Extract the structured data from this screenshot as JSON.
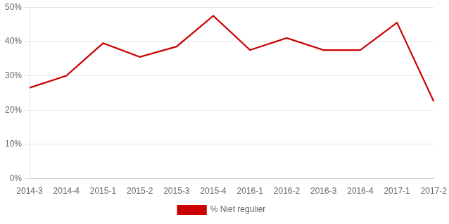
{
  "chart_data": {
    "type": "line",
    "categories": [
      "2014-3",
      "2014-4",
      "2015-1",
      "2015-2",
      "2015-3",
      "2015-4",
      "2016-1",
      "2016-2",
      "2016-3",
      "2016-4",
      "2017-1",
      "2017-2"
    ],
    "series": [
      {
        "name": "% Niet regulier",
        "color": "#cc0000",
        "values": [
          0.265,
          0.3,
          0.395,
          0.355,
          0.385,
          0.475,
          0.375,
          0.41,
          0.375,
          0.375,
          0.455,
          0.225
        ]
      }
    ],
    "ylim": [
      0.0,
      0.5
    ],
    "yticks": [
      {
        "value": 0.0,
        "label": "0%"
      },
      {
        "value": 0.1,
        "label": "10%"
      },
      {
        "value": 0.2,
        "label": "20%"
      },
      {
        "value": 0.3,
        "label": "30%"
      },
      {
        "value": 0.4,
        "label": "40%"
      },
      {
        "value": 0.5,
        "label": "50%"
      }
    ],
    "grid": true,
    "legend": "bottom"
  }
}
